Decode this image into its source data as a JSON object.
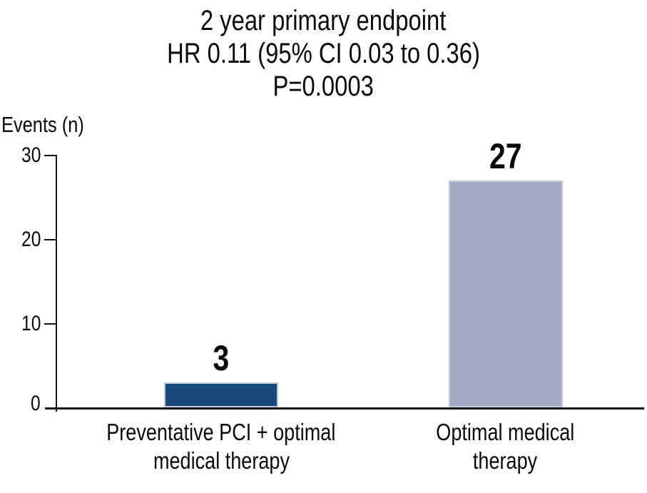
{
  "header": {
    "line1": "2 year primary endpoint",
    "line2": "HR 0.11 (95% CI 0.03 to 0.36)",
    "line3": "P=0.0003"
  },
  "chart_data": {
    "type": "bar",
    "title": "2 year primary endpoint",
    "subtitle": "HR 0.11 (95% CI 0.03 to 0.36), P=0.0003",
    "ylabel": "Events (n)",
    "categories": [
      "Preventative PCI + optimal medical therapy",
      "Optimal medical therapy"
    ],
    "categories_lines": [
      [
        "Preventative PCI + optimal",
        "medical therapy"
      ],
      [
        "Optimal medical",
        "therapy"
      ]
    ],
    "values": [
      3,
      27
    ],
    "value_labels": [
      "3",
      "27"
    ],
    "bar_colors": [
      "#17497B",
      "#A5AAC4"
    ],
    "bar_border_color": "#C2C8D6",
    "ylim": [
      0,
      30
    ],
    "yticks": [
      0,
      10,
      20,
      30
    ],
    "grid": false,
    "legend": false,
    "axis_color": "#141414",
    "text_color": "#0A0A0A"
  }
}
